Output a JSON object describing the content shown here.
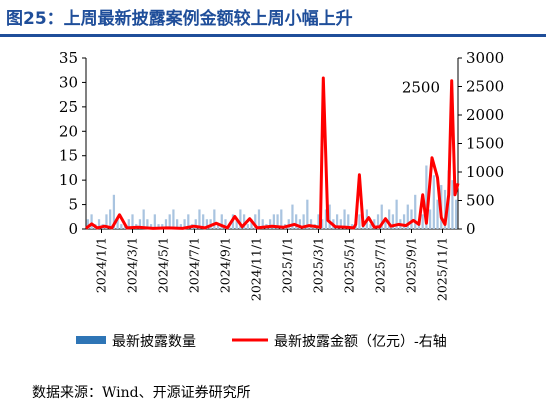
{
  "header": {
    "title": "图25：上周最新披露案例金额较上周小幅上升"
  },
  "footer": {
    "source": "数据来源：Wind、开源证券研究所"
  },
  "chart_data": {
    "type": "bar+line",
    "title": "图25：上周最新披露案例金额较上周小幅上升",
    "x_tick_labels": [
      "2024/1/1",
      "2024/3/1",
      "2024/5/1",
      "2024/7/1",
      "2024/9/1",
      "2024/11/1",
      "2025/1/1",
      "2025/3/1",
      "2025/5/1",
      "2025/7/1",
      "2025/9/1",
      "2025/11/1"
    ],
    "x_range": [
      0,
      100
    ],
    "y_left": {
      "range": [
        0,
        35
      ],
      "ticks": [
        0,
        5,
        10,
        15,
        20,
        25,
        30,
        35
      ]
    },
    "y_right": {
      "range": [
        0,
        3000
      ],
      "ticks": [
        0,
        500,
        1000,
        1500,
        2000,
        2500,
        3000
      ]
    },
    "annotation": "2500",
    "bar_color": "#2e75b6",
    "line_color": "#ff0000",
    "series": [
      {
        "name": "最新披露数量",
        "axis": "left",
        "type": "bar",
        "values": [
          2,
          3,
          1,
          2,
          1,
          3,
          4,
          7,
          2,
          1,
          1,
          2,
          3,
          1,
          2,
          4,
          2,
          1,
          3,
          1,
          1,
          2,
          3,
          4,
          2,
          1,
          2,
          3,
          1,
          2,
          4,
          3,
          2,
          2,
          4,
          1,
          3,
          2,
          1,
          3,
          2,
          4,
          3,
          1,
          2,
          3,
          4,
          2,
          1,
          2,
          3,
          3,
          4,
          1,
          2,
          5,
          3,
          2,
          3,
          6,
          2,
          1,
          3,
          2,
          4,
          5,
          2,
          3,
          2,
          4,
          3,
          1,
          2,
          3,
          2,
          4,
          1,
          2,
          3,
          5,
          2,
          4,
          3,
          6,
          2,
          3,
          5,
          4,
          7,
          2,
          3,
          13,
          4,
          11,
          6,
          9,
          8,
          12,
          10,
          6
        ]
      },
      {
        "name": "最新披露金额（亿元）-右轴",
        "axis": "right",
        "type": "line",
        "points": [
          [
            0,
            10
          ],
          [
            1.5,
            90
          ],
          [
            3,
            20
          ],
          [
            5,
            50
          ],
          [
            7,
            20
          ],
          [
            9,
            250
          ],
          [
            11,
            20
          ],
          [
            14,
            30
          ],
          [
            18,
            10
          ],
          [
            22,
            20
          ],
          [
            26,
            10
          ],
          [
            29,
            50
          ],
          [
            32,
            20
          ],
          [
            35,
            100
          ],
          [
            38,
            20
          ],
          [
            40,
            220
          ],
          [
            42,
            40
          ],
          [
            44,
            180
          ],
          [
            46,
            20
          ],
          [
            50,
            50
          ],
          [
            53,
            30
          ],
          [
            56,
            80
          ],
          [
            58,
            30
          ],
          [
            60,
            60
          ],
          [
            62,
            40
          ],
          [
            63,
            30
          ],
          [
            63.8,
            2650
          ],
          [
            65,
            150
          ],
          [
            67,
            40
          ],
          [
            70,
            30
          ],
          [
            72,
            20
          ],
          [
            72.5,
            80
          ],
          [
            73.5,
            950
          ],
          [
            74.5,
            60
          ],
          [
            76,
            200
          ],
          [
            77.5,
            30
          ],
          [
            79,
            40
          ],
          [
            80.5,
            180
          ],
          [
            82,
            50
          ],
          [
            84,
            80
          ],
          [
            86,
            60
          ],
          [
            88,
            150
          ],
          [
            89.5,
            80
          ],
          [
            90.5,
            600
          ],
          [
            91.5,
            100
          ],
          [
            93,
            1250
          ],
          [
            94.5,
            900
          ],
          [
            95.5,
            200
          ],
          [
            96.5,
            80
          ],
          [
            97.5,
            600
          ],
          [
            98.3,
            2600
          ],
          [
            99.2,
            600
          ],
          [
            100,
            800
          ]
        ]
      }
    ]
  }
}
